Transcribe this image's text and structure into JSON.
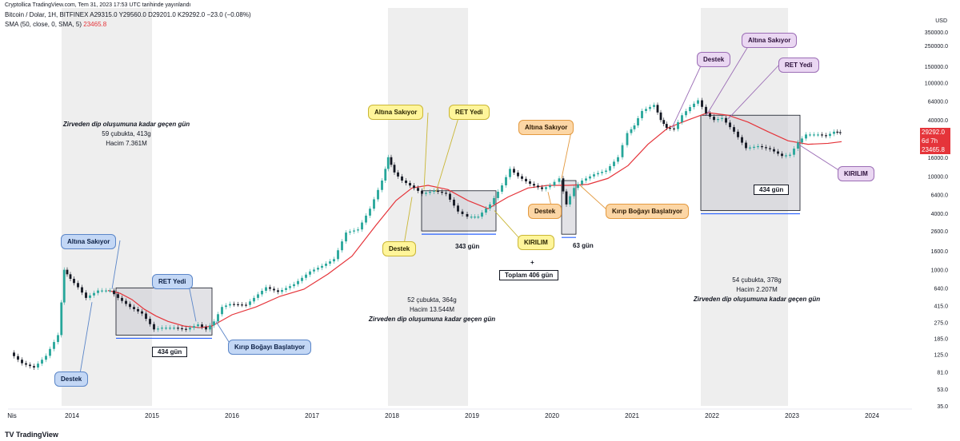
{
  "header": {
    "credit": "Cryptollica TradingView.com, Tem 31, 2023 17:53 UTC tarihinde yayınlandı",
    "symbol_line": "Bitcoin / Dolar, 1H, BITFINEX  A29315.0  Y29560.0  D29201.0  K29292.0  −23.0 (−0.08%)",
    "sma_label": "SMA (50, close, 0, SMA, 5)",
    "sma_value": "23465.8"
  },
  "axis": {
    "currency": "USD",
    "price_labels": {
      "current_price": "29292.0",
      "countdown": "6d 7h",
      "sma_price": "23465.8"
    }
  },
  "chart_data": {
    "type": "candlestick",
    "title": "Bitcoin / Dolar, 1H, BITFINEX",
    "yscale": "log",
    "ylim": [
      35,
      350000
    ],
    "y_ticks": [
      "350000.0",
      "250000.0",
      "150000.0",
      "100000.0",
      "64000.0",
      "40000.0",
      "29292.0",
      "16000.0",
      "10000.0",
      "6400.0",
      "4000.0",
      "2600.0",
      "1600.0",
      "1000.0",
      "640.0",
      "415.0",
      "275.0",
      "185.0",
      "125.0",
      "81.0",
      "53.0",
      "35.0"
    ],
    "y_tick_values": [
      350000,
      250000,
      150000,
      100000,
      64000,
      40000,
      29292,
      16000,
      10000,
      6400,
      4000,
      2600,
      1600,
      1000,
      640,
      415,
      275,
      185,
      125,
      81,
      53,
      35
    ],
    "x_ticks": [
      "Nis",
      "2014",
      "2015",
      "2016",
      "2017",
      "2018",
      "2019",
      "2020",
      "2021",
      "2022",
      "2023",
      "2024"
    ],
    "x_tick_values": [
      2013.25,
      2014,
      2015,
      2016,
      2017,
      2018,
      2019,
      2020,
      2021,
      2022,
      2023,
      2024
    ],
    "xlim": [
      2013.2,
      2024.5
    ],
    "price_series": [
      [
        2013.25,
        130
      ],
      [
        2013.4,
        100
      ],
      [
        2013.55,
        90
      ],
      [
        2013.7,
        120
      ],
      [
        2013.85,
        200
      ],
      [
        2013.92,
        1000
      ],
      [
        2014.0,
        800
      ],
      [
        2014.1,
        650
      ],
      [
        2014.2,
        500
      ],
      [
        2014.35,
        600
      ],
      [
        2014.5,
        600
      ],
      [
        2014.6,
        500
      ],
      [
        2014.75,
        400
      ],
      [
        2014.9,
        340
      ],
      [
        2015.05,
        230
      ],
      [
        2015.15,
        240
      ],
      [
        2015.3,
        240
      ],
      [
        2015.45,
        230
      ],
      [
        2015.6,
        260
      ],
      [
        2015.7,
        230
      ],
      [
        2015.8,
        280
      ],
      [
        2015.9,
        400
      ],
      [
        2016.0,
        430
      ],
      [
        2016.2,
        420
      ],
      [
        2016.45,
        650
      ],
      [
        2016.6,
        580
      ],
      [
        2016.8,
        700
      ],
      [
        2017.0,
        960
      ],
      [
        2017.15,
        1100
      ],
      [
        2017.3,
        1300
      ],
      [
        2017.45,
        2500
      ],
      [
        2017.6,
        2700
      ],
      [
        2017.75,
        4500
      ],
      [
        2017.9,
        9000
      ],
      [
        2017.97,
        16000
      ],
      [
        2018.05,
        11000
      ],
      [
        2018.15,
        9000
      ],
      [
        2018.3,
        7500
      ],
      [
        2018.4,
        6500
      ],
      [
        2018.55,
        7000
      ],
      [
        2018.7,
        6500
      ],
      [
        2018.85,
        4200
      ],
      [
        2018.97,
        3700
      ],
      [
        2019.1,
        3700
      ],
      [
        2019.25,
        5000
      ],
      [
        2019.4,
        8000
      ],
      [
        2019.5,
        12000
      ],
      [
        2019.6,
        10000
      ],
      [
        2019.75,
        8300
      ],
      [
        2019.9,
        7300
      ],
      [
        2020.0,
        8000
      ],
      [
        2020.12,
        9500
      ],
      [
        2020.2,
        5000
      ],
      [
        2020.3,
        7500
      ],
      [
        2020.4,
        9000
      ],
      [
        2020.55,
        10500
      ],
      [
        2020.7,
        11500
      ],
      [
        2020.85,
        16000
      ],
      [
        2020.97,
        29000
      ],
      [
        2021.05,
        35000
      ],
      [
        2021.15,
        50000
      ],
      [
        2021.3,
        58000
      ],
      [
        2021.38,
        40000
      ],
      [
        2021.45,
        33000
      ],
      [
        2021.55,
        32000
      ],
      [
        2021.65,
        45000
      ],
      [
        2021.75,
        55000
      ],
      [
        2021.85,
        65000
      ],
      [
        2021.95,
        47000
      ],
      [
        2022.05,
        40000
      ],
      [
        2022.15,
        42000
      ],
      [
        2022.3,
        30000
      ],
      [
        2022.45,
        20000
      ],
      [
        2022.6,
        21000
      ],
      [
        2022.75,
        19500
      ],
      [
        2022.9,
        16500
      ],
      [
        2023.0,
        17000
      ],
      [
        2023.1,
        23000
      ],
      [
        2023.2,
        28000
      ],
      [
        2023.35,
        28000
      ],
      [
        2023.45,
        27000
      ],
      [
        2023.55,
        30000
      ],
      [
        2023.62,
        29292
      ]
    ],
    "sma_series": [
      [
        2014.45,
        600
      ],
      [
        2014.6,
        560
      ],
      [
        2014.75,
        480
      ],
      [
        2014.9,
        380
      ],
      [
        2015.05,
        320
      ],
      [
        2015.2,
        280
      ],
      [
        2015.4,
        250
      ],
      [
        2015.6,
        240
      ],
      [
        2015.75,
        250
      ],
      [
        2016.0,
        330
      ],
      [
        2016.3,
        400
      ],
      [
        2016.6,
        520
      ],
      [
        2016.9,
        620
      ],
      [
        2017.2,
        900
      ],
      [
        2017.5,
        1400
      ],
      [
        2017.8,
        3000
      ],
      [
        2018.05,
        5500
      ],
      [
        2018.25,
        7500
      ],
      [
        2018.45,
        8000
      ],
      [
        2018.7,
        7200
      ],
      [
        2018.95,
        5500
      ],
      [
        2019.2,
        4500
      ],
      [
        2019.45,
        6000
      ],
      [
        2019.7,
        7500
      ],
      [
        2019.95,
        8000
      ],
      [
        2020.2,
        8000
      ],
      [
        2020.45,
        8200
      ],
      [
        2020.7,
        9500
      ],
      [
        2020.95,
        13000
      ],
      [
        2021.2,
        22000
      ],
      [
        2021.45,
        33000
      ],
      [
        2021.7,
        40000
      ],
      [
        2021.95,
        48000
      ],
      [
        2022.2,
        45000
      ],
      [
        2022.45,
        38000
      ],
      [
        2022.7,
        30000
      ],
      [
        2022.95,
        24000
      ],
      [
        2023.2,
        22000
      ],
      [
        2023.45,
        22500
      ],
      [
        2023.62,
        23465.8
      ]
    ],
    "annotations": {
      "callouts": [
        {
          "text": "Altına Sakıyor",
          "style": "blue"
        },
        {
          "text": "RET Yedi",
          "style": "blue"
        },
        {
          "text": "Destek",
          "style": "blue"
        },
        {
          "text": "Kırıp Boğayı Başlatıyor",
          "style": "blue"
        },
        {
          "text": "Altına Sakıyor",
          "style": "yellow"
        },
        {
          "text": "RET Yedi",
          "style": "yellow"
        },
        {
          "text": "Destek",
          "style": "yellow"
        },
        {
          "text": "KIRILIM",
          "style": "yellow"
        },
        {
          "text": "Altına Sakıyor",
          "style": "orange"
        },
        {
          "text": "Destek",
          "style": "orange"
        },
        {
          "text": "Kırıp Boğayı Başlatıyor",
          "style": "orange"
        },
        {
          "text": "Destek",
          "style": "purple"
        },
        {
          "text": "Altına Sakıyor",
          "style": "purple"
        },
        {
          "text": "RET Yedi",
          "style": "purple"
        },
        {
          "text": "KIRILIM",
          "style": "purple"
        }
      ],
      "day_counts": {
        "cycle1": "434 gün",
        "cycle2": "343 gün",
        "cycle3": "63 gün",
        "cycle4": "434 gün",
        "plus": "+",
        "total": "Toplam 406 gün"
      },
      "notes": {
        "n1_title": "Zirveden dip oluşumuna kadar geçen gün",
        "n1_bars": "59 çubukta, 413g",
        "n1_volume": "Hacim 7.361M",
        "n2_bars": "52 çubukta, 364g",
        "n2_volume": "Hacim 13.544M",
        "n2_title": "Zirveden dip oluşumuna kadar geçen gün",
        "n3_bars": "54 çubukta, 378g",
        "n3_volume": "Hacim 2.207M",
        "n3_title": "Zirveden dip oluşumuna kadar geçen gün"
      }
    }
  },
  "footer": {
    "brand": "TradingView"
  }
}
